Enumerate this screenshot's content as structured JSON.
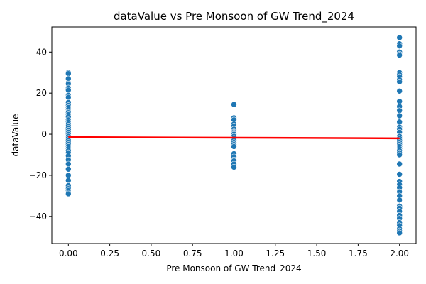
{
  "chart_data": {
    "type": "scatter",
    "title": "dataValue vs Pre Monsoon of GW Trend_2024",
    "xlabel": "Pre Monsoon of GW Trend_2024",
    "ylabel": "dataValue",
    "xlim": [
      -0.1,
      2.1
    ],
    "ylim": [
      -53.2,
      52.2
    ],
    "x_ticks": [
      0.0,
      0.25,
      0.5,
      0.75,
      1.0,
      1.25,
      1.5,
      1.75,
      2.0
    ],
    "x_tick_labels": [
      "0.00",
      "0.25",
      "0.50",
      "0.75",
      "1.00",
      "1.25",
      "1.50",
      "1.75",
      "2.00"
    ],
    "y_ticks": [
      -40,
      -20,
      0,
      20,
      40
    ],
    "y_tick_labels": [
      "−40",
      "−20",
      "0",
      "20",
      "40"
    ],
    "grid": false,
    "point_color": "#1f77b4",
    "trend_color": "#ff0000",
    "series": [
      {
        "x_value": 0,
        "values": [
          30.0,
          29.5,
          27.0,
          25.0,
          24.5,
          22.5,
          21.5,
          19.0,
          18.0,
          15.5,
          14.0,
          13.0,
          12.0,
          11.0,
          10.5,
          9.5,
          8.5,
          7.0,
          6.0,
          5.0,
          4.0,
          3.0,
          2.0,
          1.0,
          0.0,
          -1.0,
          -2.0,
          -3.0,
          -4.0,
          -5.0,
          -6.0,
          -7.0,
          -8.0,
          -9.0,
          -10.5,
          -12.5,
          -14.5,
          -17.0,
          -20.0,
          -22.5,
          -25.0,
          -26.5,
          -27.5,
          -28.5,
          -29.0
        ]
      },
      {
        "x_value": 1,
        "values": [
          14.5,
          8.0,
          7.0,
          5.0,
          4.0,
          2.5,
          1.5,
          1.0,
          0.5,
          0.0,
          -1.0,
          -2.0,
          -3.0,
          -4.0,
          -5.0,
          -6.0,
          -9.5,
          -11.0,
          -12.5,
          -13.0,
          -14.5,
          -16.0
        ]
      },
      {
        "x_value": 2,
        "values": [
          47.0,
          44.0,
          43.0,
          40.0,
          39.0,
          38.5,
          30.0,
          29.0,
          28.0,
          26.5,
          25.5,
          21.0,
          16.0,
          13.5,
          11.5,
          9.0,
          6.0,
          3.5,
          2.5,
          1.0,
          -1.0,
          -2.0,
          -3.0,
          -4.0,
          -5.0,
          -6.0,
          -7.0,
          -8.0,
          -9.0,
          -10.0,
          -14.5,
          -19.5,
          -23.0,
          -24.5,
          -26.0,
          -28.0,
          -30.0,
          -32.0,
          -35.0,
          -36.0,
          -37.5,
          -39.5,
          -41.0,
          -43.0,
          -44.5,
          -46.0,
          -47.0,
          -48.0
        ]
      }
    ],
    "trend_line": {
      "x": [
        0,
        2
      ],
      "y": [
        -1.4,
        -2.0
      ]
    }
  }
}
